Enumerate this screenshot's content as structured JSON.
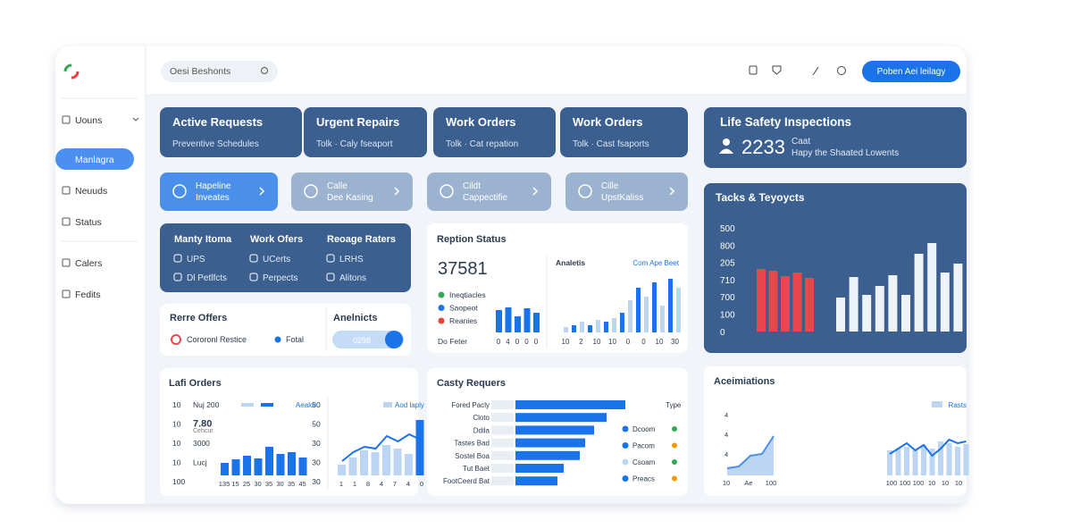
{
  "header": {
    "search": "Oesi Beshonts",
    "button": "Poben Aei leilagy"
  },
  "sidebar": [
    "Uouns",
    "Manlagra",
    "Neuuds",
    "Status",
    "Calers",
    "Fedits"
  ],
  "stat_cards": [
    {
      "title": "Active Requests",
      "subtitle": "Preventive Schedules"
    },
    {
      "title": "Urgent Repairs",
      "subtitle": "Tolk · Caly fseaport"
    },
    {
      "title": "Work Orders",
      "subtitle": "Tolk · Cat repation"
    },
    {
      "title": "Work Orders",
      "subtitle": "Tolk · Cast fsaports"
    }
  ],
  "safety": {
    "title": "Life Safety Inspections",
    "value": 2233,
    "label": "Caat",
    "note": "Hapy the Shaated Lowents"
  },
  "actions": [
    [
      "Hapeline",
      "Inveates"
    ],
    [
      "Calle",
      "Dee Kasing"
    ],
    [
      "Cildt",
      "Cappectifie"
    ],
    [
      "Cille",
      "UpstKaliss"
    ]
  ],
  "summary": [
    {
      "title": "Manty Itoma",
      "items": [
        "UPS",
        "Dl Petlfcts"
      ]
    },
    {
      "title": "Work Ofers",
      "items": [
        "UCerts",
        "Perpects"
      ]
    },
    {
      "title": "Reoage Raters",
      "items": [
        "LRHS",
        "Alitons"
      ]
    }
  ],
  "tasks": {
    "title": "Tacks & Teyoycts",
    "ticks": [
      "500",
      "800",
      "205",
      "710",
      "700",
      "100",
      "0"
    ],
    "red": [
      70,
      68,
      62,
      66,
      60
    ],
    "white": [
      38,
      61,
      41,
      51,
      63,
      41,
      87,
      99,
      66,
      76
    ]
  },
  "reption": {
    "title": "Reption Status",
    "value": 37581,
    "legend": [
      "Ineqtiacles",
      "Saopeot",
      "Reanies"
    ],
    "footer": "Do Feter",
    "bars": [
      25,
      28,
      18,
      27,
      22
    ],
    "bar_labels": [
      "0",
      "4",
      "0",
      "0",
      "0"
    ],
    "sub_title": "Analetis",
    "link": "Com Ape Beet",
    "sub_bars": [
      6,
      8,
      12,
      8,
      14,
      12,
      16,
      22,
      36,
      50,
      40,
      56,
      30,
      60,
      50
    ],
    "sub_labels": [
      "10",
      "2",
      "10",
      "10",
      "0",
      "0",
      "10",
      "30"
    ]
  },
  "offers": {
    "title": "Rerre Offers",
    "item": "Cororonl Restice",
    "item2": "Fotal",
    "side_title": "Anelnicts",
    "pill": "0298"
  },
  "lafi": {
    "title": "Lafi Orders",
    "left_ticks": [
      "10",
      "10",
      "10",
      "10",
      "100"
    ],
    "notes": [
      "Nuj 200",
      "7.80",
      "3000",
      "Lucj"
    ],
    "note_sub": "Cehcur",
    "right_ticks": [
      "50",
      "50",
      "30",
      "30",
      "30"
    ],
    "legend": "Aealor",
    "bars": [
      14,
      18,
      22,
      19,
      32,
      24,
      26,
      20
    ],
    "bar_labels": [
      "135",
      "15",
      "25",
      "30",
      "35",
      "30",
      "35",
      "45"
    ],
    "legend2": "Aod laply",
    "bars2": [
      12,
      20,
      28,
      26,
      34,
      30,
      24,
      62
    ],
    "line2": [
      16,
      26,
      32,
      30,
      44,
      38,
      46,
      40
    ],
    "labels2": [
      "1",
      "1",
      "8",
      "4",
      "7",
      "4",
      "0"
    ]
  },
  "casty": {
    "title": "Casty Requers",
    "rows": [
      "Fored Pacly",
      "Cloto",
      "Ddila",
      "Tastes Bad",
      "Sostel Boa",
      "Tut Baet",
      "FootCeerd Bat"
    ],
    "values": [
      123,
      102,
      88,
      78,
      72,
      54,
      47
    ],
    "legend_title": "Type",
    "legend": [
      "Dcoom",
      "Pacom",
      "Csoam",
      "Preacs"
    ]
  },
  "aceim": {
    "title": "Aceimiations",
    "legend": "Rasts",
    "area": [
      8,
      10,
      22,
      24,
      44
    ],
    "area_ticks": [
      "4",
      "4",
      "4"
    ],
    "area_labels": [
      "10",
      "Ae",
      "100"
    ],
    "bars": [
      28,
      30,
      32,
      28,
      34,
      30,
      38,
      36,
      32,
      35
    ],
    "line": [
      24,
      30,
      36,
      28,
      34,
      22,
      30,
      40,
      36,
      38
    ],
    "labels": [
      "100",
      "100",
      "100",
      "10",
      "10",
      "10"
    ]
  }
}
